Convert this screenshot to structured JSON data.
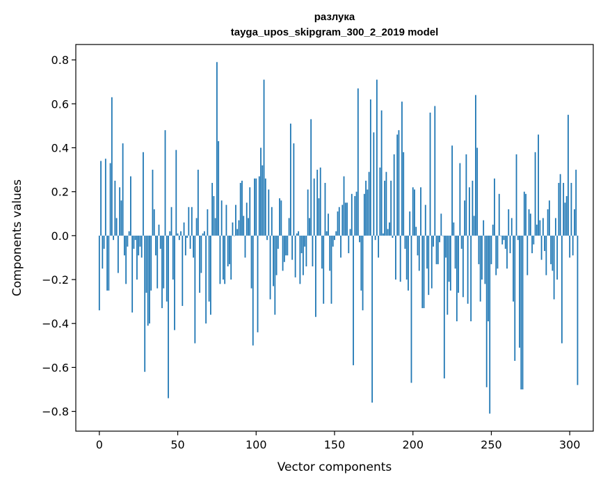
{
  "chart_data": {
    "type": "bar",
    "title": "разлука",
    "subtitle": "tayga_upos_skipgram_300_2_2019 model",
    "xlabel": "Vector components",
    "ylabel": "Components values",
    "xlim": [
      -15,
      315
    ],
    "ylim": [
      -0.89,
      0.87
    ],
    "xticks": [
      0,
      50,
      100,
      150,
      200,
      250,
      300
    ],
    "yticks": [
      -0.8,
      -0.6,
      -0.4,
      -0.2,
      0.0,
      0.2,
      0.4,
      0.6,
      0.8
    ],
    "ytick_labels": [
      "−0.8",
      "−0.6",
      "−0.4",
      "−0.2",
      "0.0",
      "0.2",
      "0.4",
      "0.6",
      "0.8"
    ],
    "xtick_labels": [
      "0",
      "50",
      "100",
      "150",
      "200",
      "250",
      "300"
    ],
    "grid": false,
    "bar_color": "#1f77b4",
    "values": [
      -0.34,
      0.34,
      -0.15,
      -0.06,
      0.35,
      -0.25,
      -0.25,
      0.33,
      0.63,
      -0.02,
      0.25,
      0.08,
      -0.17,
      0.22,
      0.16,
      0.42,
      -0.09,
      -0.22,
      -0.05,
      0.02,
      0.27,
      -0.35,
      -0.06,
      -0.02,
      -0.2,
      -0.09,
      -0.05,
      -0.1,
      0.38,
      -0.62,
      -0.26,
      -0.41,
      -0.4,
      -0.25,
      0.3,
      0.12,
      -0.09,
      -0.24,
      0.05,
      -0.06,
      -0.33,
      -0.24,
      0.48,
      -0.3,
      -0.74,
      0.02,
      0.13,
      -0.2,
      -0.43,
      0.39,
      0.01,
      -0.02,
      0.02,
      -0.32,
      0.06,
      -0.09,
      -0.01,
      0.13,
      -0.06,
      0.13,
      -0.1,
      -0.49,
      0.08,
      0.3,
      -0.26,
      -0.17,
      0.01,
      0.02,
      -0.4,
      0.12,
      -0.3,
      -0.36,
      0.24,
      0.18,
      0.08,
      0.79,
      0.43,
      -0.22,
      0.16,
      -0.2,
      -0.22,
      0.14,
      -0.14,
      -0.13,
      -0.2,
      0.06,
      0.0,
      0.14,
      0.03,
      0.07,
      0.24,
      0.25,
      0.09,
      -0.1,
      0.15,
      0.08,
      0.22,
      -0.24,
      -0.5,
      0.26,
      0.26,
      -0.44,
      0.27,
      0.4,
      0.32,
      0.71,
      0.26,
      -0.02,
      0.21,
      -0.29,
      0.13,
      -0.23,
      -0.36,
      -0.18,
      -0.06,
      0.17,
      0.16,
      -0.16,
      -0.12,
      -0.09,
      -0.09,
      0.08,
      0.51,
      -0.11,
      0.42,
      -0.19,
      0.01,
      0.02,
      -0.22,
      -0.08,
      -0.18,
      -0.05,
      -0.14,
      0.21,
      0.08,
      0.53,
      -0.14,
      0.26,
      -0.37,
      0.3,
      0.17,
      0.31,
      -0.15,
      -0.31,
      0.24,
      0.02,
      0.1,
      -0.16,
      -0.31,
      -0.05,
      -0.02,
      0.02,
      0.11,
      0.13,
      -0.1,
      0.14,
      0.27,
      0.15,
      0.15,
      -0.08,
      0.03,
      0.19,
      -0.59,
      0.18,
      0.2,
      0.67,
      -0.03,
      -0.25,
      -0.34,
      0.19,
      0.25,
      0.21,
      0.29,
      0.62,
      -0.76,
      0.47,
      -0.02,
      0.71,
      -0.1,
      0.31,
      0.57,
      0.01,
      0.25,
      0.29,
      0.03,
      0.06,
      0.25,
      -0.01,
      0.37,
      -0.2,
      0.46,
      0.48,
      -0.21,
      0.61,
      0.38,
      -0.06,
      -0.2,
      -0.25,
      0.11,
      -0.67,
      0.22,
      0.21,
      0.04,
      -0.09,
      -0.16,
      0.22,
      -0.33,
      -0.33,
      0.14,
      -0.15,
      -0.27,
      0.56,
      -0.24,
      -0.05,
      0.59,
      -0.13,
      -0.13,
      -0.03,
      0.1,
      0.0,
      -0.65,
      -0.1,
      -0.36,
      -0.21,
      -0.25,
      0.41,
      0.06,
      -0.15,
      -0.39,
      -0.26,
      0.33,
      -0.06,
      -0.28,
      0.16,
      0.37,
      -0.31,
      0.22,
      -0.39,
      0.25,
      0.09,
      0.64,
      0.4,
      -0.13,
      -0.3,
      -0.2,
      0.07,
      -0.22,
      -0.69,
      -0.39,
      -0.81,
      -0.13,
      0.05,
      0.26,
      -0.18,
      -0.15,
      0.19,
      0.0,
      -0.04,
      -0.02,
      -0.06,
      -0.15,
      0.12,
      -0.08,
      0.08,
      -0.3,
      -0.57,
      0.37,
      -0.02,
      -0.51,
      -0.7,
      -0.7,
      0.2,
      0.19,
      -0.18,
      0.12,
      0.1,
      -0.08,
      -0.04,
      0.38,
      0.05,
      0.46,
      0.07,
      -0.11,
      0.08,
      -0.07,
      -0.18,
      0.12,
      0.16,
      -0.13,
      -0.16,
      -0.29,
      0.08,
      -0.2,
      0.24,
      0.28,
      -0.49,
      0.24,
      0.15,
      0.18,
      0.55,
      -0.1,
      0.24,
      -0.09,
      0.12,
      0.3,
      -0.68
    ]
  }
}
